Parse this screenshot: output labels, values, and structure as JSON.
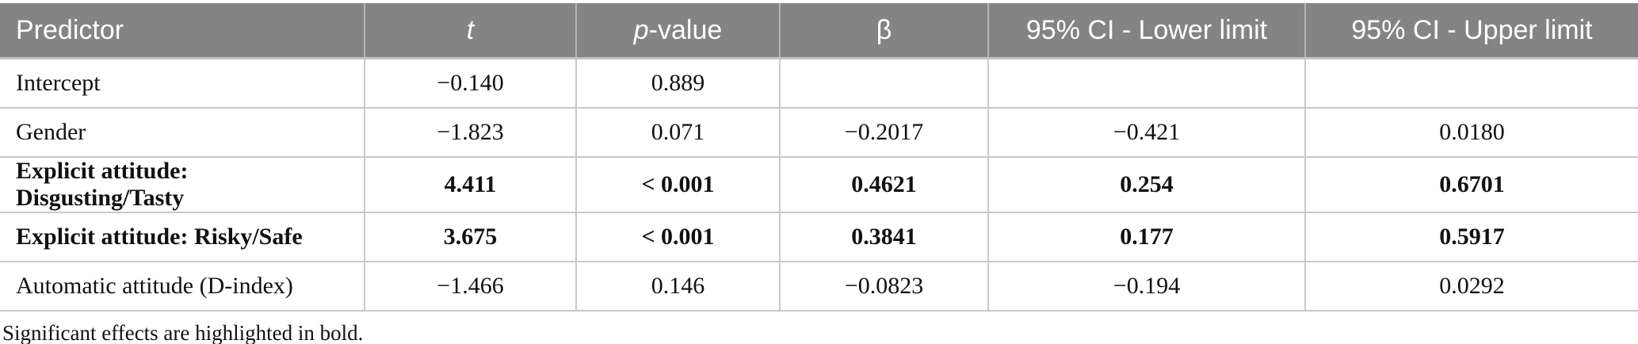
{
  "colors": {
    "header_bg": "#848484",
    "header_text": "#ffffff",
    "grid_line": "#c9c9c9",
    "body_bg": "#ffffff",
    "text": "#111111"
  },
  "table": {
    "headers": {
      "predictor": "Predictor",
      "t": "t",
      "p_italic": "p",
      "p_rest": "-value",
      "beta": "β",
      "ci_lower": "95% CI - Lower limit",
      "ci_upper": "95% CI - Upper limit"
    },
    "rows": [
      {
        "predictor": "Intercept",
        "t": "−0.140",
        "p": "0.889",
        "beta": "",
        "ci_lower": "",
        "ci_upper": "",
        "bold": false
      },
      {
        "predictor": "Gender",
        "t": "−1.823",
        "p": "0.071",
        "beta": "−0.2017",
        "ci_lower": "−0.421",
        "ci_upper": "0.0180",
        "bold": false
      },
      {
        "predictor": "Explicit attitude: Disgusting/Tasty",
        "t": "4.411",
        "p": "< 0.001",
        "beta": "0.4621",
        "ci_lower": "0.254",
        "ci_upper": "0.6701",
        "bold": true
      },
      {
        "predictor": "Explicit attitude: Risky/Safe",
        "t": "3.675",
        "p": "< 0.001",
        "beta": "0.3841",
        "ci_lower": "0.177",
        "ci_upper": "0.5917",
        "bold": true
      },
      {
        "predictor": "Automatic attitude (D-index)",
        "t": "−1.466",
        "p": "0.146",
        "beta": "−0.0823",
        "ci_lower": "−0.194",
        "ci_upper": "0.0292",
        "bold": false
      }
    ],
    "footnote": "Significant effects are highlighted in bold."
  }
}
